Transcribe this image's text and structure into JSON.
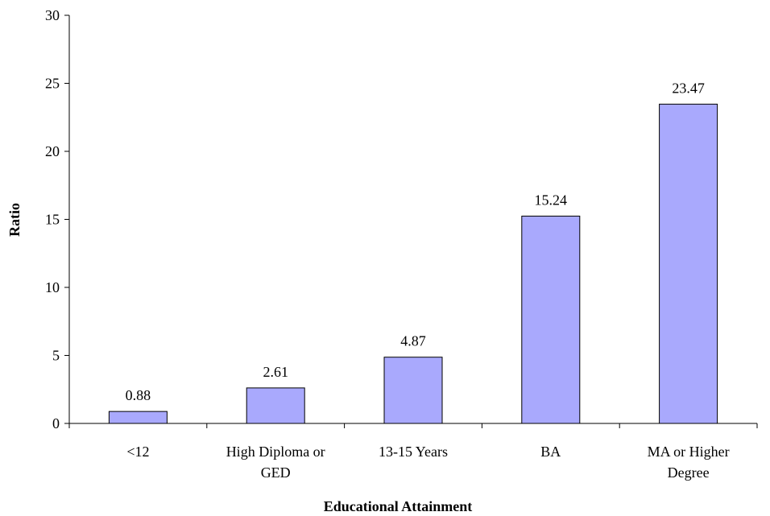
{
  "chart_data": {
    "type": "bar",
    "categories": [
      [
        "<12"
      ],
      [
        "High Diploma or",
        "GED"
      ],
      [
        "13-15 Years"
      ],
      [
        "BA"
      ],
      [
        "MA or Higher",
        "Degree"
      ]
    ],
    "values": [
      0.88,
      2.61,
      4.87,
      15.24,
      23.47
    ],
    "data_labels": [
      "0.88",
      "2.61",
      "4.87",
      "15.24",
      "23.47"
    ],
    "xlabel": "Educational Attainment",
    "ylabel": "Ratio",
    "ylim": [
      0,
      30
    ],
    "yticks": [
      0,
      5,
      10,
      15,
      20,
      25,
      30
    ],
    "grid": false,
    "legend": "none",
    "colors": {
      "bar_fill": "#A9A9FD",
      "bar_stroke": "#000000",
      "axis": "#000000"
    }
  }
}
